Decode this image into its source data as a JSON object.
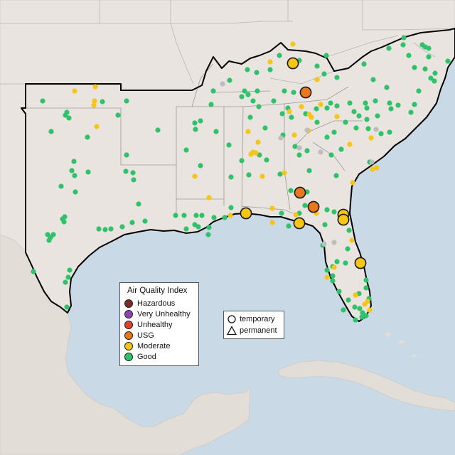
{
  "legend": {
    "title": "Air Quality Index",
    "categories": [
      {
        "label": "Hazardous",
        "color": "#7e2a2a"
      },
      {
        "label": "Very Unhealthy",
        "color": "#8f44b4"
      },
      {
        "label": "Unhealthy",
        "color": "#e2412b"
      },
      {
        "label": "USG",
        "color": "#e8771e"
      },
      {
        "label": "Moderate",
        "color": "#f5c518"
      },
      {
        "label": "Good",
        "color": "#2fc26a"
      }
    ]
  },
  "shape_legend": {
    "items": [
      {
        "label": "temporary",
        "icon": "circle-icon"
      },
      {
        "label": "permanent",
        "icon": "triangle-icon"
      }
    ]
  },
  "colors": {
    "ocean": "#c9d9e6",
    "land": "#e9e4df",
    "region_outline": "#000000",
    "state_border": "#b9b5b2",
    "good": "#2fc26a",
    "moderate": "#f5c518",
    "usg": "#e8771e",
    "unknown": "#bdbdbd"
  }
}
